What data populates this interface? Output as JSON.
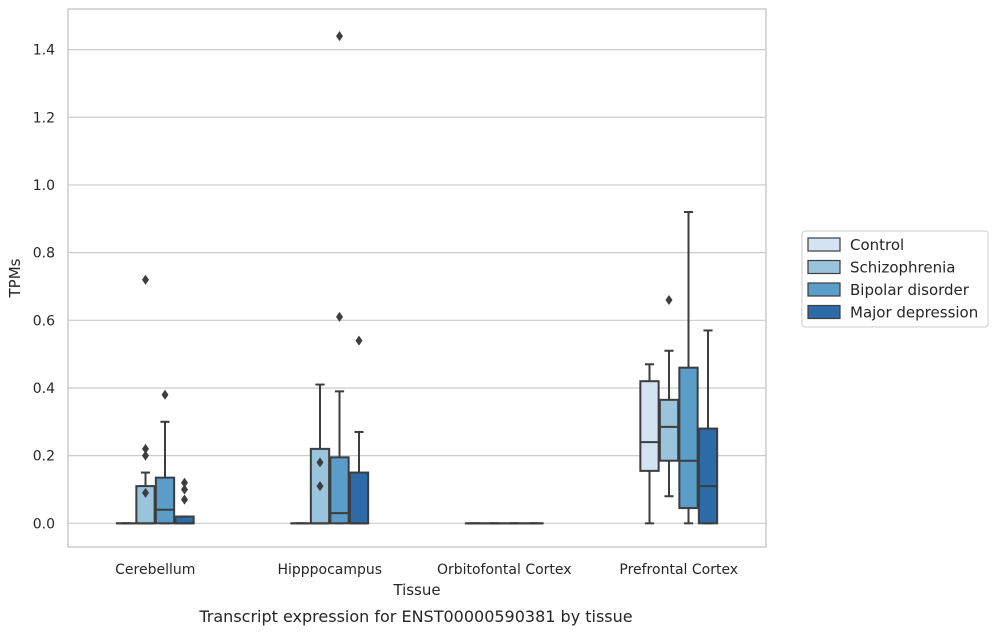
{
  "chart_data": {
    "type": "box",
    "caption": "Transcript expression for ENST00000590381 by tissue",
    "xlabel": "Tissue",
    "ylabel": "TPMs",
    "categories": [
      "Cerebellum",
      "Hipppocampus",
      "Orbitofontal Cortex",
      "Prefrontal Cortex"
    ],
    "ylim": [
      -0.07,
      1.52
    ],
    "yticks": [
      0.0,
      0.2,
      0.4,
      0.6,
      0.8,
      1.0,
      1.2,
      1.4
    ],
    "ytick_labels": [
      "0.0",
      "0.2",
      "0.4",
      "0.6",
      "0.8",
      "1.0",
      "1.2",
      "1.4"
    ],
    "grid": "horizontal",
    "legend_position": "right",
    "series": [
      {
        "name": "Control",
        "color": "#d4e3f2",
        "boxes": [
          {
            "q1": 0,
            "median": 0,
            "q3": 0,
            "whislo": 0,
            "whishi": 0,
            "fliers": []
          },
          {
            "q1": 0,
            "median": 0,
            "q3": 0,
            "whislo": 0,
            "whishi": 0,
            "fliers": []
          },
          {
            "q1": 0,
            "median": 0,
            "q3": 0,
            "whislo": 0,
            "whishi": 0,
            "fliers": []
          },
          {
            "q1": 0.155,
            "median": 0.24,
            "q3": 0.42,
            "whislo": 0,
            "whishi": 0.47,
            "fliers": []
          }
        ]
      },
      {
        "name": "Schizophrenia",
        "color": "#9ac3dc",
        "boxes": [
          {
            "q1": 0,
            "median": 0,
            "q3": 0.11,
            "whislo": 0,
            "whishi": 0.15,
            "fliers": [
              0.09,
              0.2,
              0.22,
              0.72
            ]
          },
          {
            "q1": 0,
            "median": 0,
            "q3": 0.22,
            "whislo": 0,
            "whishi": 0.41,
            "fliers": [
              0.11,
              0.18
            ]
          },
          {
            "q1": 0,
            "median": 0,
            "q3": 0,
            "whislo": 0,
            "whishi": 0,
            "fliers": []
          },
          {
            "q1": 0.185,
            "median": 0.285,
            "q3": 0.365,
            "whislo": 0.08,
            "whishi": 0.51,
            "fliers": [
              0.66
            ]
          }
        ]
      },
      {
        "name": "Bipolar disorder",
        "color": "#5a9dc8",
        "boxes": [
          {
            "q1": 0,
            "median": 0.04,
            "q3": 0.135,
            "whislo": 0,
            "whishi": 0.3,
            "fliers": [
              0.38
            ]
          },
          {
            "q1": 0,
            "median": 0.03,
            "q3": 0.195,
            "whislo": 0,
            "whishi": 0.39,
            "fliers": [
              0.61,
              1.44
            ]
          },
          {
            "q1": 0,
            "median": 0,
            "q3": 0,
            "whislo": 0,
            "whishi": 0,
            "fliers": []
          },
          {
            "q1": 0.045,
            "median": 0.185,
            "q3": 0.46,
            "whislo": 0,
            "whishi": 0.92,
            "fliers": []
          }
        ]
      },
      {
        "name": "Major depression",
        "color": "#2c6aa8",
        "boxes": [
          {
            "q1": 0,
            "median": 0,
            "q3": 0.02,
            "whislo": 0,
            "whishi": 0.02,
            "fliers": [
              0.07,
              0.1,
              0.12
            ]
          },
          {
            "q1": 0,
            "median": 0,
            "q3": 0.15,
            "whislo": 0,
            "whishi": 0.27,
            "fliers": [
              0.54
            ]
          },
          {
            "q1": 0,
            "median": 0,
            "q3": 0,
            "whislo": 0,
            "whishi": 0,
            "fliers": []
          },
          {
            "q1": 0,
            "median": 0.11,
            "q3": 0.28,
            "whislo": 0,
            "whishi": 0.57,
            "fliers": []
          }
        ]
      }
    ]
  }
}
